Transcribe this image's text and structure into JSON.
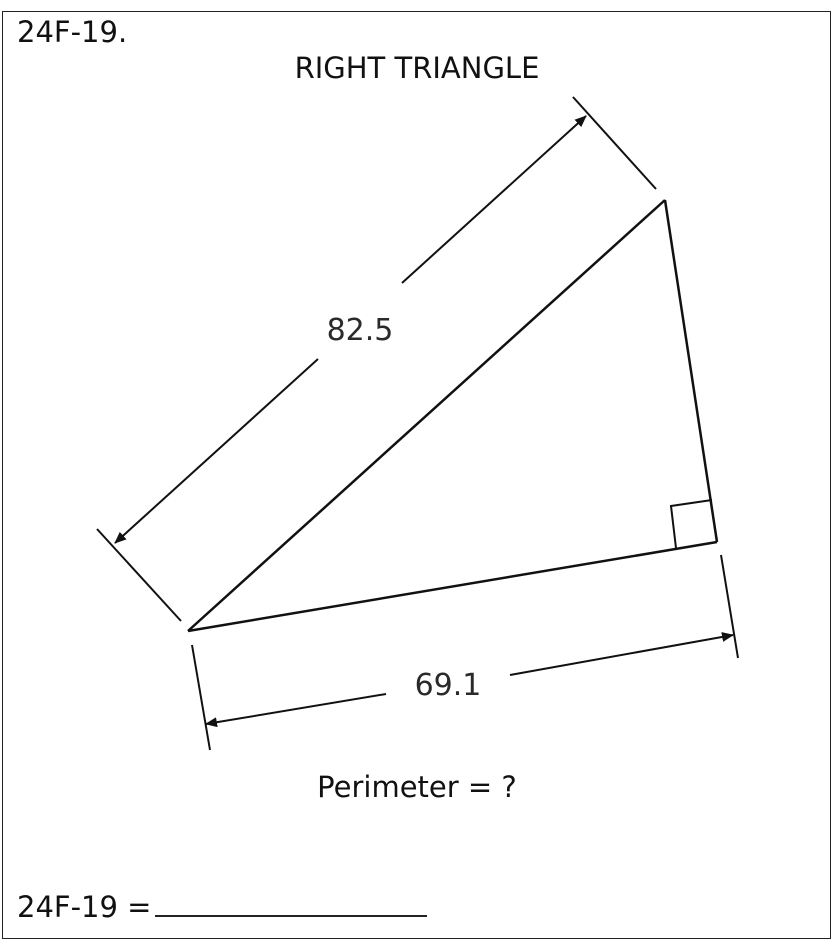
{
  "problem_id": "24F-19.",
  "title": "RIGHT TRIANGLE",
  "hypotenuse_label": "82.5",
  "leg_label": "69.1",
  "question": "Perimeter = ?",
  "answer": {
    "label": "24F-19 ="
  }
}
